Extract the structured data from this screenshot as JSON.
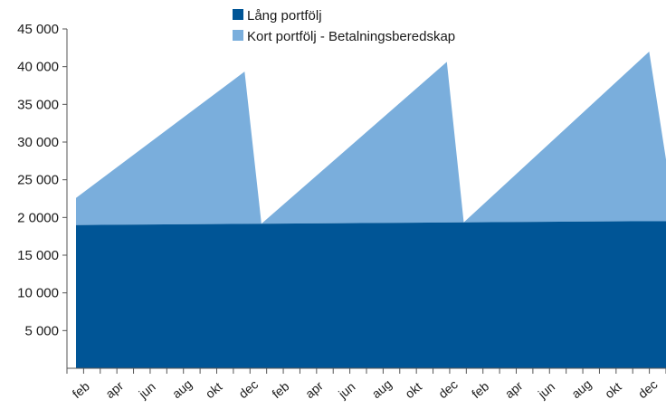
{
  "chart_data": {
    "type": "area",
    "stacked": true,
    "grid": false,
    "legend_position": "top",
    "ylim": [
      0,
      45000
    ],
    "yticks": [
      {
        "value": 5000,
        "label": "5 000"
      },
      {
        "value": 10000,
        "label": "10 000"
      },
      {
        "value": 15000,
        "label": "15 000"
      },
      {
        "value": 20000,
        "label": "2 0000"
      },
      {
        "value": 25000,
        "label": "25 000"
      },
      {
        "value": 30000,
        "label": "30 000"
      },
      {
        "value": 35000,
        "label": "35 000"
      },
      {
        "value": 40000,
        "label": "40 000"
      },
      {
        "value": 45000,
        "label": "45 000"
      }
    ],
    "x_tick_labels": [
      "feb",
      "apr",
      "jun",
      "aug",
      "okt",
      "dec",
      "feb",
      "apr",
      "jun",
      "aug",
      "okt",
      "dec",
      "feb",
      "apr",
      "jun",
      "aug",
      "okt",
      "dec"
    ],
    "series": [
      {
        "name": "Lång portfölj",
        "color": "#005596",
        "points": [
          {
            "x": 0,
            "y": 19000
          },
          {
            "x": 33,
            "y": 19500
          },
          {
            "x": 34,
            "y": 19500
          },
          {
            "x": 35,
            "y": 19500
          }
        ]
      },
      {
        "name": "Kort portfölj - Betalningsberedskap",
        "color": "#7aaedc",
        "points": [
          {
            "x": 0,
            "y": 3600
          },
          {
            "x": 10,
            "y": 20200
          },
          {
            "x": 11,
            "y": 0
          },
          {
            "x": 22,
            "y": 21300
          },
          {
            "x": 23,
            "y": 0
          },
          {
            "x": 34,
            "y": 22500
          },
          {
            "x": 35,
            "y": 8200
          }
        ]
      }
    ]
  }
}
